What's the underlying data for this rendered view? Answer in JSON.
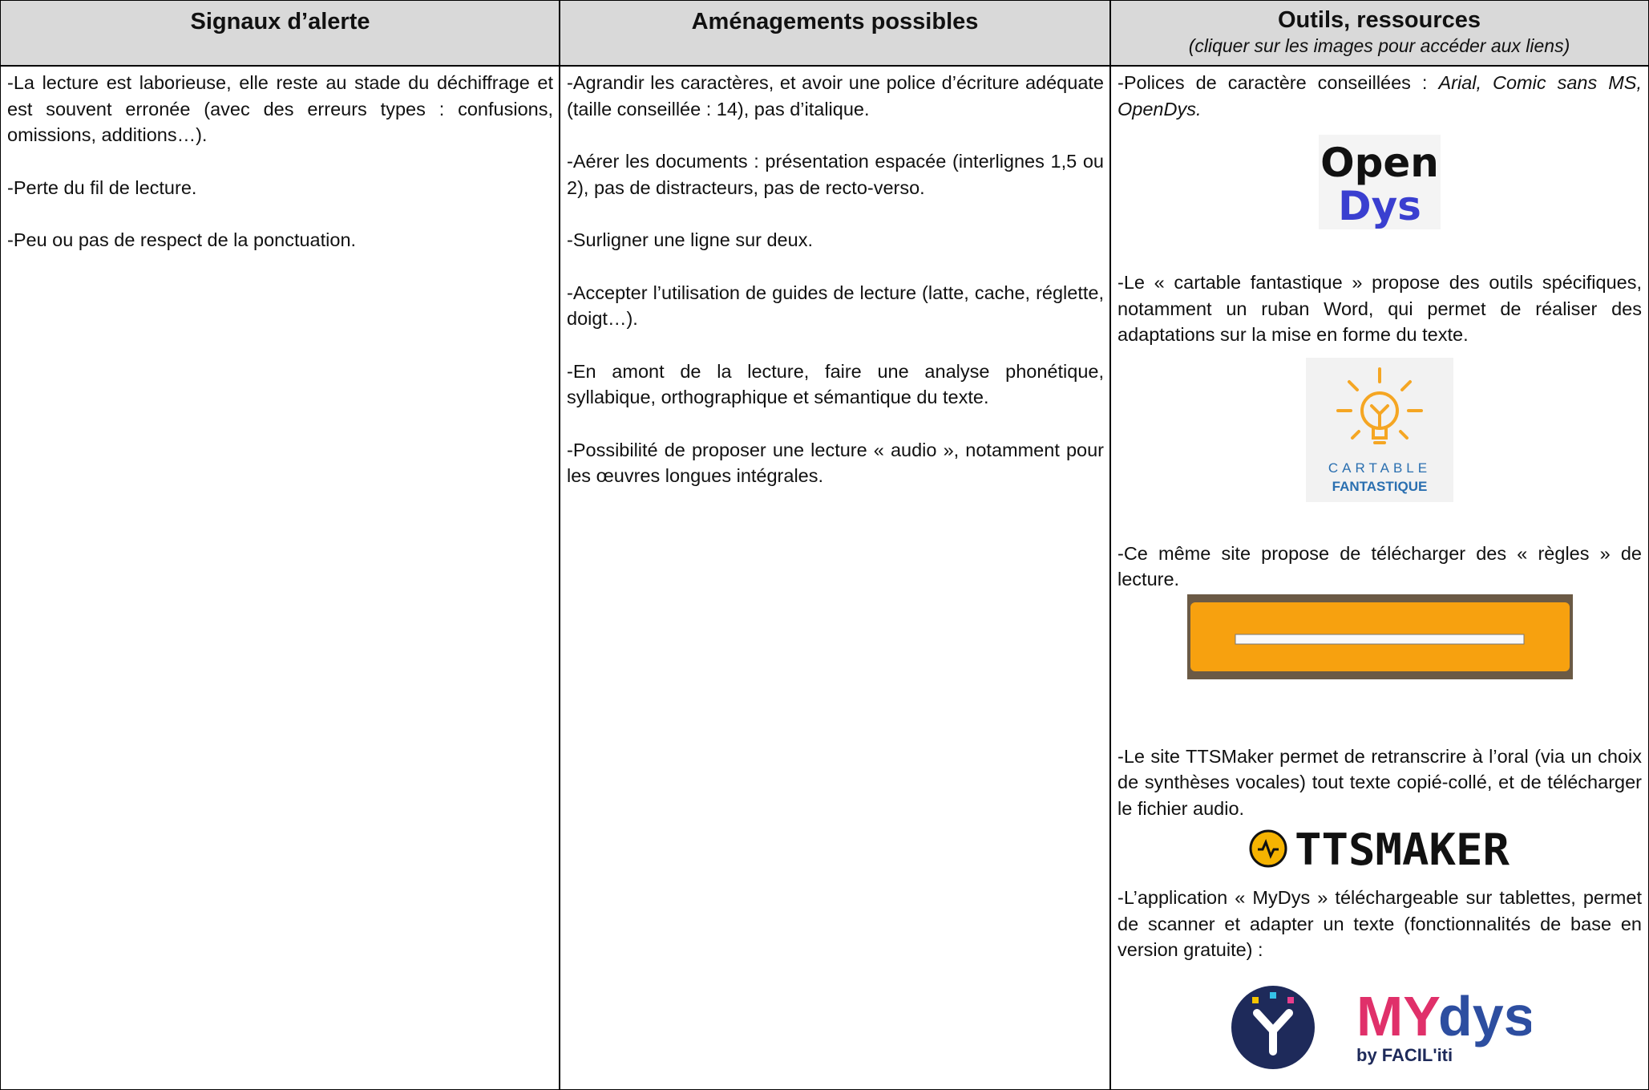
{
  "table": {
    "headers": [
      {
        "title": "Signaux d’alerte"
      },
      {
        "title": "Aménagements possibles"
      },
      {
        "title": "Outils, ressources",
        "subtitle": "(cliquer sur les images pour accéder aux liens)"
      }
    ],
    "alerts": [
      "-La lecture est laborieuse, elle reste au stade du déchiffrage et est souvent erronée (avec des erreurs types : confusions, omissions, additions…).",
      "-Perte du fil de lecture.",
      "-Peu ou pas de respect de la ponctuation."
    ],
    "adjustments": [
      "-Agrandir les caractères, et avoir une police d’écriture adéquate (taille conseillée : 14), pas d’italique.",
      "-Aérer les documents : présentation espacée (interlignes 1,5 ou 2), pas de distracteurs, pas de recto-verso.",
      "-Surligner une ligne sur deux.",
      "-Accepter l’utilisation de guides de lecture (latte, cache, réglette, doigt…).",
      "-En amont de la lecture, faire une analyse phonétique, syllabique, orthographique et sémantique du texte.",
      "-Possibilité de proposer une lecture « audio », notamment pour les œuvres longues intégrales."
    ],
    "tools": [
      {
        "text": "-Polices de caractère conseillées : ",
        "emphasis": "Arial, Comic sans MS, OpenDys.",
        "logo": [
          "Open",
          "Dys"
        ]
      },
      {
        "text": "-Le « cartable fantastique » propose des outils spécifiques, notamment un ruban Word, qui permet de réaliser des adaptations sur la mise en forme du texte.",
        "logo": [
          "CARTABLE",
          "FANTASTIQUE"
        ]
      },
      {
        "text": "-Ce même site propose de télécharger des « règles » de lecture."
      },
      {
        "text": "-Le site TTSMaker permet de retranscrire à l’oral (via un choix de synthèses vocales) tout texte copié-collé, et de télécharger le fichier audio.",
        "logo": [
          "TTSMAKER"
        ]
      },
      {
        "text": "-L’application « MyDys » téléchargeable sur tablettes, permet de scanner et adapter un texte (fonctionnalités de base en version gratuite) :",
        "logo": [
          "MY",
          "dys",
          "by FACIL'iti"
        ]
      }
    ]
  }
}
